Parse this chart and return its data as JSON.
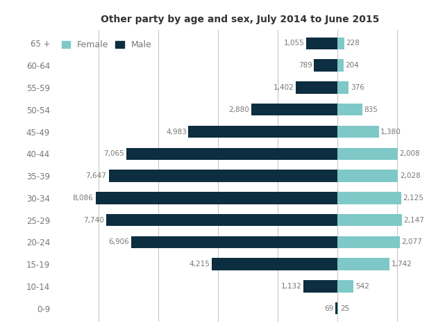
{
  "title": "Other party by age and sex, July 2014 to June 2015",
  "age_groups": [
    "65 +",
    "60-64",
    "55-59",
    "50-54",
    "45-49",
    "40-44",
    "35-39",
    "30-34",
    "25-29",
    "20-24",
    "15-19",
    "10-14",
    "0-9"
  ],
  "male_values": [
    1055,
    789,
    1402,
    2880,
    4983,
    7065,
    7647,
    8086,
    7740,
    6906,
    4215,
    1132,
    69
  ],
  "female_values": [
    228,
    204,
    376,
    835,
    1380,
    2008,
    2028,
    2125,
    2147,
    2077,
    1742,
    542,
    25
  ],
  "male_color": "#0d2d40",
  "female_color": "#7ec8c8",
  "background_color": "#ffffff",
  "grid_color": "#c8c8c8",
  "text_color": "#777777",
  "bar_height": 0.55,
  "legend_labels": [
    "Female",
    "Male"
  ]
}
